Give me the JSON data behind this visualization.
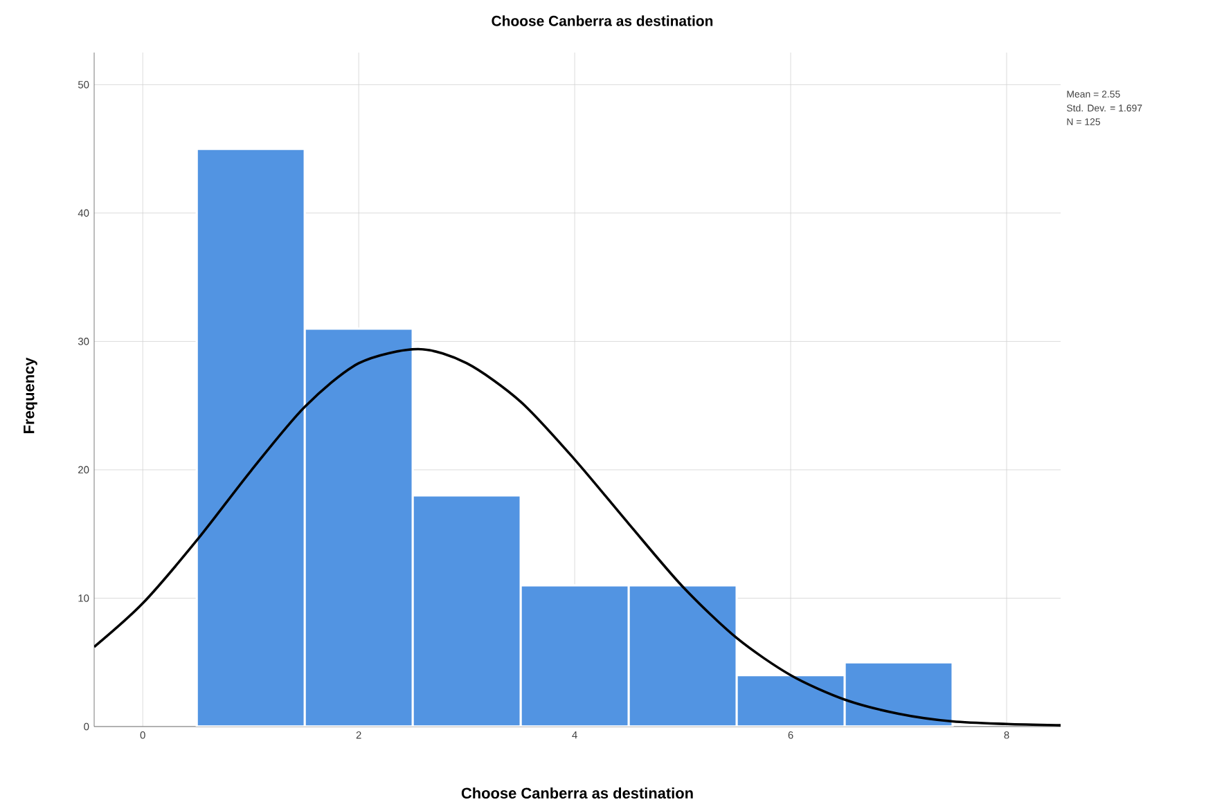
{
  "chart_data": {
    "type": "histogram",
    "title": "Choose Canberra as destination",
    "xlabel": "Choose Canberra as destination",
    "ylabel": "Frequency",
    "bins": [
      0.5,
      1.5,
      2.5,
      3.5,
      4.5,
      5.5,
      6.5,
      7.5
    ],
    "values": [
      45,
      31,
      18,
      11,
      11,
      4,
      5
    ],
    "color": "#5294e2",
    "series": [
      {
        "type": "line",
        "color": "#000000",
        "x": [
          -0.45,
          0,
          0.5,
          1,
          1.5,
          2,
          2.55,
          3,
          3.5,
          4,
          4.5,
          5,
          5.5,
          6,
          6.5,
          7,
          7.5,
          8,
          8.5
        ],
        "values": [
          6.2,
          9.6,
          14.5,
          19.9,
          24.9,
          28.3,
          29.4,
          28.3,
          25.3,
          20.8,
          15.8,
          10.9,
          6.9,
          4.0,
          2.1,
          1.0,
          0.4,
          0.2,
          0.1
        ]
      }
    ],
    "xlim": [
      -0.45,
      8.5
    ],
    "ylim": [
      0,
      52.5
    ],
    "xticks": [
      0,
      2,
      4,
      6,
      8
    ],
    "yticks": [
      0,
      10,
      20,
      30,
      40,
      50
    ],
    "grid": true,
    "annotations": [
      "Mean = 2.55",
      "Std. Dev. = 1.697",
      "N = 125"
    ]
  }
}
